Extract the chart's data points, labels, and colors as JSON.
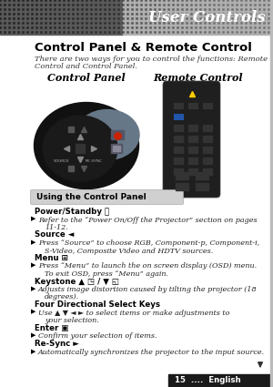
{
  "bg_color": "#ffffff",
  "header_text": "User Controls",
  "header_text_color": "#ffffff",
  "title": "Control Panel & Remote Control",
  "subtitle_line1": "There are two ways for you to control the functions: Remote",
  "subtitle_line2": "Control and Control Panel.",
  "col_label_left": "Control Panel",
  "col_label_right": "Remote Control",
  "section_box_text": "Using the Control Panel",
  "body_lines": [
    {
      "type": "heading",
      "text": "Power/Standby ⓨ"
    },
    {
      "type": "bullet",
      "text": "Refer to the “Power On/Off the Projector” section on pages"
    },
    {
      "type": "bullet2",
      "text": "11-12."
    },
    {
      "type": "heading",
      "text": "Source ◄"
    },
    {
      "type": "bullet",
      "text": "Press “Source” to choose RGB, Component-p, Component-i,"
    },
    {
      "type": "bullet2",
      "text": "S-Video, Composite Video and HDTV sources."
    },
    {
      "type": "heading",
      "text": "Menu ⊞"
    },
    {
      "type": "bullet",
      "text": "Press “Menu” to launch the on screen display (OSD) menu."
    },
    {
      "type": "bullet2",
      "text": "To exit OSD, press “Menu” again."
    },
    {
      "type": "heading",
      "text": "Keystone ▲ ◳ / ▼ ◱"
    },
    {
      "type": "bullet",
      "text": "Adjusts image distortion caused by tilting the projector (18"
    },
    {
      "type": "bullet2",
      "text": "degrees)."
    },
    {
      "type": "heading",
      "text": "Four Directional Select Keys"
    },
    {
      "type": "bullet",
      "text": "Use ▲ ▼ ◄ ► to select items or make adjustments to"
    },
    {
      "type": "bullet2",
      "text": "your selection."
    },
    {
      "type": "heading",
      "text": "Enter ▣"
    },
    {
      "type": "bullet",
      "text": "Confirm your selection of items."
    },
    {
      "type": "heading",
      "text": "Re-Sync ►"
    },
    {
      "type": "bullet",
      "text": "Automatically synchronizes the projector to the input source."
    }
  ],
  "footer_number": "15",
  "footer_dots": "....",
  "footer_lang": "English",
  "footer_bg": "#1a1a1a",
  "footer_text_color": "#ffffff"
}
